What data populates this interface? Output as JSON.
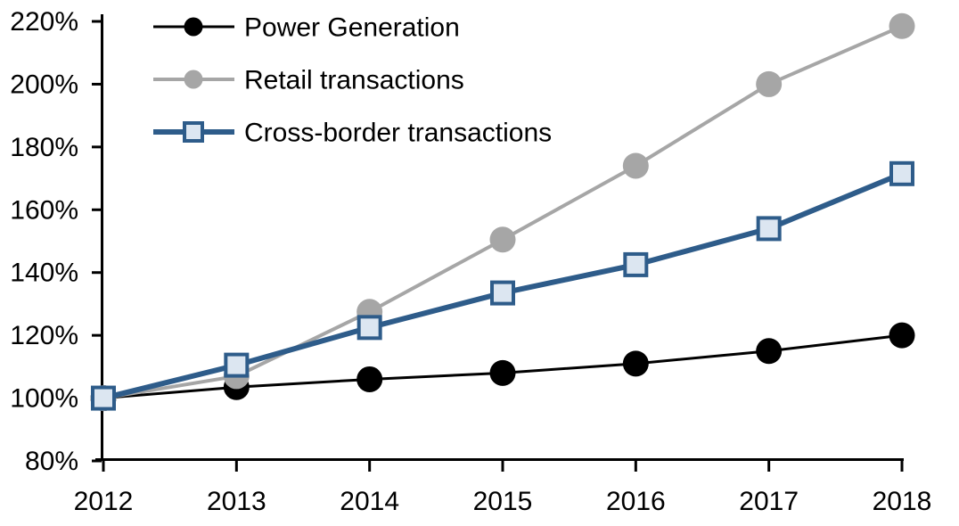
{
  "chart_data": {
    "type": "line",
    "title": "",
    "xlabel": "",
    "ylabel": "",
    "x": [
      2012,
      2013,
      2014,
      2015,
      2016,
      2017,
      2018
    ],
    "series": [
      {
        "name": "Power Generation",
        "color": "#000000",
        "marker": "circle",
        "marker_fill": "#000000",
        "line_width": 3,
        "values": [
          100,
          103.5,
          106,
          108,
          111,
          115,
          120
        ]
      },
      {
        "name": "Retail transactions",
        "color": "#A6A6A6",
        "marker": "circle",
        "marker_fill": "#A6A6A6",
        "line_width": 4,
        "values": [
          100,
          107,
          127.5,
          150.5,
          174,
          200,
          218.5
        ]
      },
      {
        "name": "Cross-border transactions",
        "color": "#2E5C8A",
        "marker": "square",
        "marker_fill": "#DCE6F1",
        "line_width": 6,
        "values": [
          100,
          110.5,
          122.5,
          133.5,
          142.5,
          154,
          171.5
        ]
      }
    ],
    "ylim": [
      80,
      220
    ],
    "ytick_step": 20,
    "ytick_suffix": "%",
    "xtick_labels": [
      "2012",
      "2013",
      "2014",
      "2015",
      "2016",
      "2017",
      "2018"
    ],
    "ytick_labels": [
      "80%",
      "100%",
      "120%",
      "140%",
      "160%",
      "180%",
      "200%",
      "220%"
    ],
    "legend_position": "top-left",
    "grid": false,
    "axis_color": "#000000",
    "background_color": "#FFFFFF"
  }
}
